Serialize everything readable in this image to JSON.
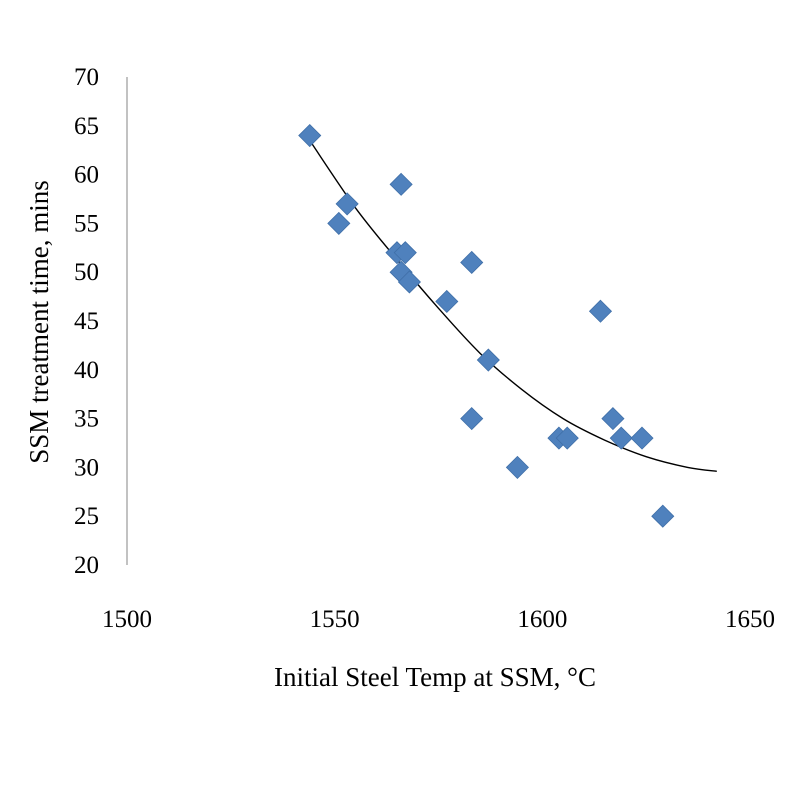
{
  "chart_data": {
    "type": "scatter",
    "title": "",
    "xlabel": "Initial Steel Temp at SSM, °C",
    "ylabel": "SSM treatment time, mins",
    "xlim": [
      1500,
      1650
    ],
    "ylim": [
      20,
      70
    ],
    "xticks": [
      "1500",
      "1550",
      "1600",
      "1650"
    ],
    "yticks": [
      "20",
      "25",
      "30",
      "35",
      "40",
      "45",
      "50",
      "55",
      "60",
      "65",
      "70"
    ],
    "grid": false,
    "legend": "none",
    "marker": "diamond",
    "marker_color": "#4F81BD",
    "trendline_color": "#000000",
    "series": [
      {
        "points": [
          {
            "x": 1544,
            "y": 64
          },
          {
            "x": 1551,
            "y": 55
          },
          {
            "x": 1553,
            "y": 57
          },
          {
            "x": 1565,
            "y": 52
          },
          {
            "x": 1566,
            "y": 59
          },
          {
            "x": 1567,
            "y": 52
          },
          {
            "x": 1566,
            "y": 50
          },
          {
            "x": 1568,
            "y": 49
          },
          {
            "x": 1577,
            "y": 47
          },
          {
            "x": 1583,
            "y": 51
          },
          {
            "x": 1583,
            "y": 35
          },
          {
            "x": 1587,
            "y": 41
          },
          {
            "x": 1594,
            "y": 30
          },
          {
            "x": 1604,
            "y": 33
          },
          {
            "x": 1606,
            "y": 33
          },
          {
            "x": 1614,
            "y": 46
          },
          {
            "x": 1617,
            "y": 35
          },
          {
            "x": 1619,
            "y": 33
          },
          {
            "x": 1624,
            "y": 33
          },
          {
            "x": 1629,
            "y": 25
          }
        ]
      }
    ],
    "trendline": {
      "type": "polynomial",
      "x": [
        1544,
        1555,
        1565,
        1575,
        1585,
        1595,
        1605,
        1615,
        1625,
        1635,
        1642
      ],
      "y": [
        63.5,
        56.6,
        51.3,
        46.3,
        41.7,
        38.0,
        35.0,
        32.8,
        31.1,
        30.0,
        29.6
      ]
    }
  }
}
